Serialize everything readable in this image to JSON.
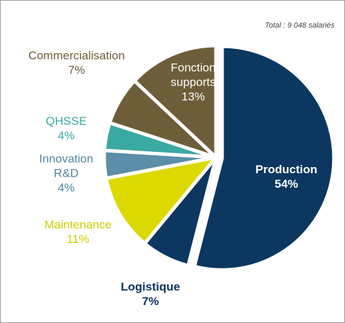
{
  "chart_data": {
    "type": "pie",
    "title": "Total : 9 048 salariés",
    "categories": [
      "Production",
      "Logistique",
      "Maintenance",
      "Innovation R&D",
      "QHSSE",
      "Commercialisation",
      "Fonction supports"
    ],
    "values": [
      54,
      7,
      11,
      4,
      4,
      7,
      13
    ],
    "value_labels": [
      "54%",
      "7%",
      "11%",
      "4%",
      "4%",
      "7%",
      "13%"
    ],
    "colors": [
      "#0b3760",
      "#0b3760",
      "#dcd900",
      "#5a8ea9",
      "#3aa9a1",
      "#6d5e39",
      "#6d5e39"
    ],
    "label_colors": [
      "#ffffff",
      "#0b3760",
      "#cfcc00",
      "#4f87a2",
      "#3aa9a1",
      "#6d5e39",
      "#ffffff"
    ]
  }
}
